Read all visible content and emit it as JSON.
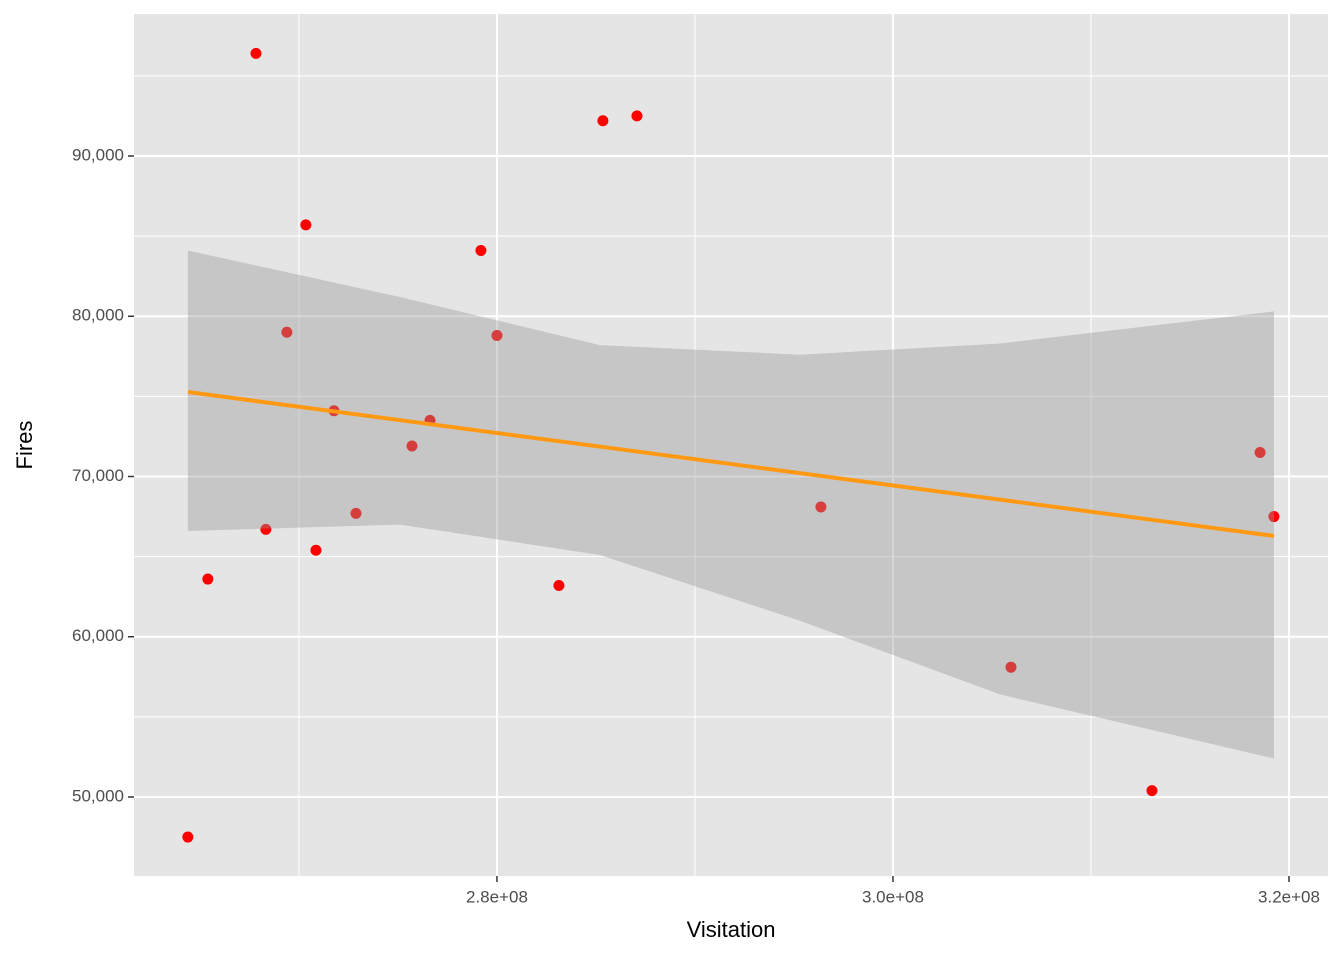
{
  "chart_data": {
    "type": "scatter",
    "x_label": "Visitation",
    "y_label": "Fires",
    "point_color": "#ff0000",
    "line_color": "#ff9914",
    "band_color": "#999999",
    "background": "#e5e5e5",
    "grid": true,
    "xlim": [
      261670000,
      321970000
    ],
    "ylim": [
      45070,
      98860
    ],
    "xticks": [
      {
        "value": 280000000,
        "label": "2.8e+08"
      },
      {
        "value": 300000000,
        "label": "3.0e+08"
      },
      {
        "value": 320000000,
        "label": "3.2e+08"
      }
    ],
    "xminor": [
      270000000,
      290000000,
      310000000
    ],
    "yticks": [
      {
        "value": 50000,
        "label": "50,000"
      },
      {
        "value": 60000,
        "label": "60,000"
      },
      {
        "value": 70000,
        "label": "70,000"
      },
      {
        "value": 80000,
        "label": "80,000"
      },
      {
        "value": 90000,
        "label": "90,000"
      }
    ],
    "yminor": [
      55000,
      65000,
      75000,
      85000,
      95000
    ],
    "x": [
      264390000,
      265400000,
      267830000,
      268330000,
      269390000,
      270350000,
      270860000,
      271770000,
      272880000,
      275710000,
      276620000,
      279190000,
      280000000,
      283130000,
      285350000,
      287070000,
      296360000,
      305960000,
      313080000,
      318540000,
      319240000
    ],
    "values": [
      47500,
      63600,
      96400,
      66700,
      79000,
      85700,
      65400,
      74100,
      67700,
      71900,
      73500,
      84100,
      78800,
      63200,
      92200,
      92500,
      68100,
      58100,
      50400,
      71500,
      67500
    ],
    "trend": {
      "x": [
        264390000,
        319240000
      ],
      "values": [
        75270,
        66290
      ]
    },
    "band": {
      "x": [
        264390000,
        275100000,
        285200000,
        295300000,
        305400000,
        319240000
      ],
      "upper": [
        84100,
        81200,
        78200,
        77600,
        78300,
        80300
      ],
      "lower": [
        66600,
        67000,
        65100,
        61000,
        56400,
        52400
      ]
    }
  }
}
